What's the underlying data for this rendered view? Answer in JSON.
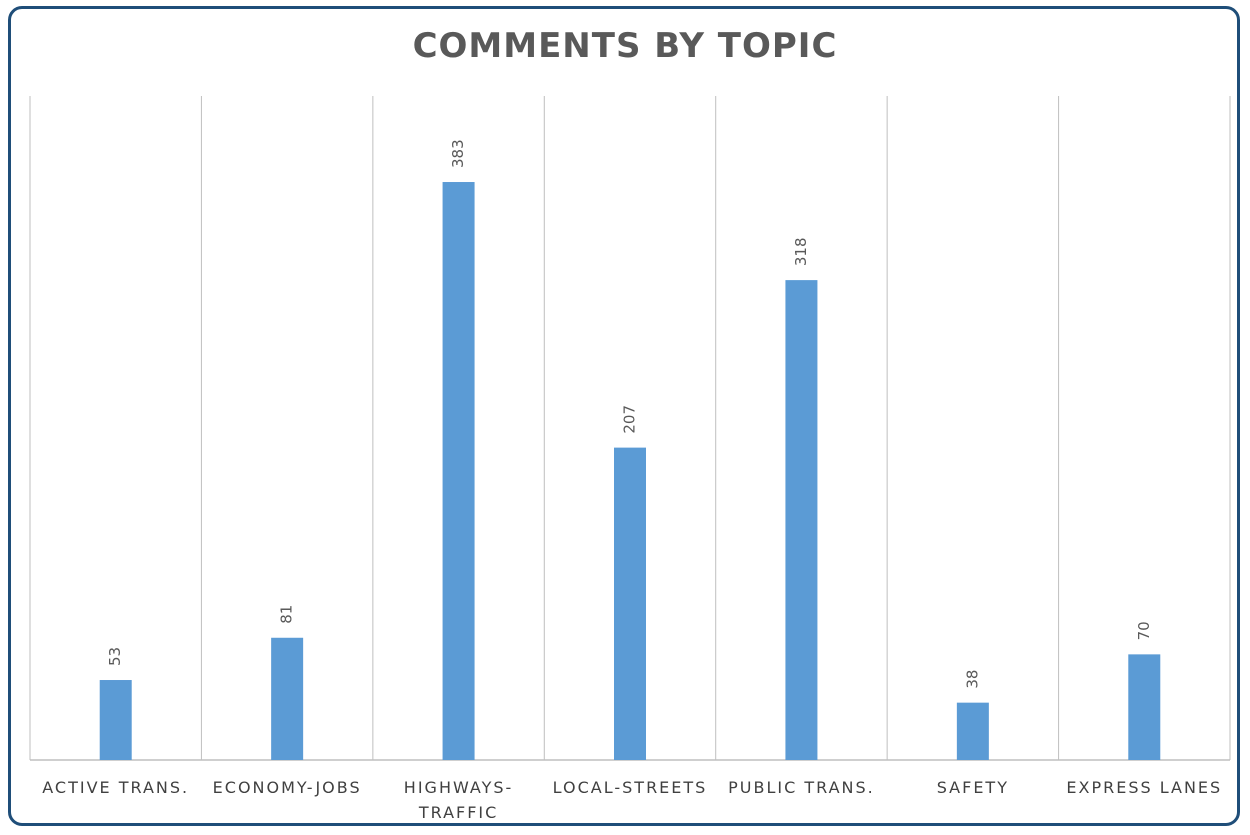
{
  "chart_data": {
    "type": "bar",
    "title": "COMMENTS BY TOPIC",
    "categories": [
      [
        "ACTIVE TRANS."
      ],
      [
        "ECONOMY-JOBS"
      ],
      [
        "HIGHWAYS-",
        "TRAFFIC"
      ],
      [
        "LOCAL-STREETS"
      ],
      [
        "PUBLIC TRANS."
      ],
      [
        "SAFETY"
      ],
      [
        "EXPRESS LANES"
      ]
    ],
    "values": [
      53,
      81,
      383,
      207,
      318,
      38,
      70
    ],
    "xlabel": "",
    "ylabel": "",
    "ylim": [
      0,
      440
    ],
    "grid": "vertical",
    "legend": "none",
    "bar_color": "#5b9bd5",
    "grid_color": "#bfbfbf",
    "data_labels": "rotated-vertical"
  }
}
